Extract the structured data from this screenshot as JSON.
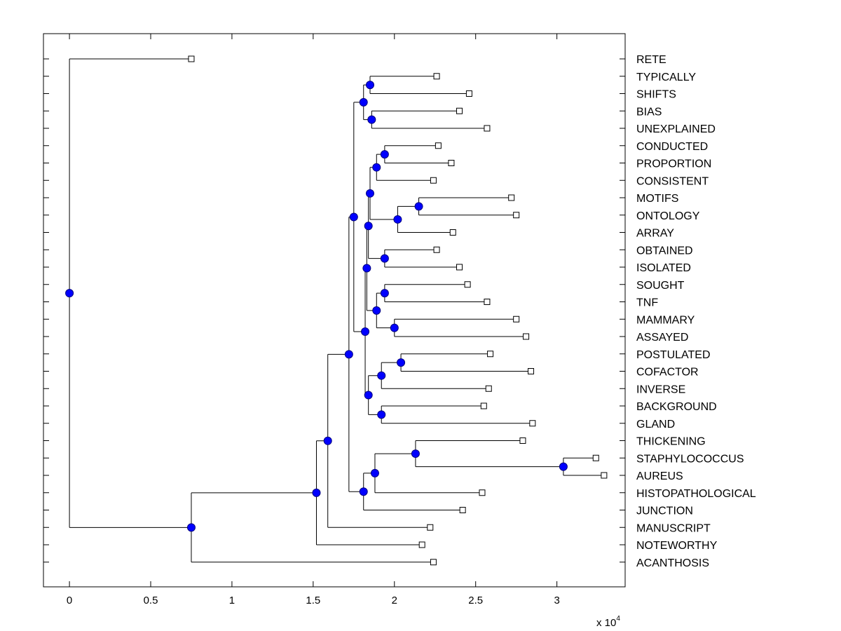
{
  "chart_data": {
    "type": "dendrogram",
    "title": "",
    "xlabel": "",
    "ylabel": "",
    "x_scale_label": "x 10",
    "x_scale_exponent": "4",
    "xlim": [
      -0.16,
      3.42
    ],
    "xticks": [
      0,
      0.5,
      1,
      1.5,
      2,
      2.5,
      3
    ],
    "xtick_labels": [
      "0",
      "0.5",
      "1",
      "1.5",
      "2",
      "2.5",
      "3"
    ],
    "colors": {
      "node": "#0000ff",
      "line": "#000000",
      "background": "#ffffff"
    },
    "leaves": [
      {
        "label": "RETE",
        "value": 0.75
      },
      {
        "label": "TYPICALLY",
        "value": 2.26
      },
      {
        "label": "SHIFTS",
        "value": 2.46
      },
      {
        "label": "BIAS",
        "value": 2.4
      },
      {
        "label": "UNEXPLAINED",
        "value": 2.57
      },
      {
        "label": "CONDUCTED",
        "value": 2.27
      },
      {
        "label": "PROPORTION",
        "value": 2.35
      },
      {
        "label": "CONSISTENT",
        "value": 2.24
      },
      {
        "label": "MOTIFS",
        "value": 2.72
      },
      {
        "label": "ONTOLOGY",
        "value": 2.75
      },
      {
        "label": "ARRAY",
        "value": 2.36
      },
      {
        "label": "OBTAINED",
        "value": 2.26
      },
      {
        "label": "ISOLATED",
        "value": 2.4
      },
      {
        "label": "SOUGHT",
        "value": 2.45
      },
      {
        "label": "TNF",
        "value": 2.57
      },
      {
        "label": "MAMMARY",
        "value": 2.75
      },
      {
        "label": "ASSAYED",
        "value": 2.81
      },
      {
        "label": "POSTULATED",
        "value": 2.59
      },
      {
        "label": "COFACTOR",
        "value": 2.84
      },
      {
        "label": "INVERSE",
        "value": 2.58
      },
      {
        "label": "BACKGROUND",
        "value": 2.55
      },
      {
        "label": "GLAND",
        "value": 2.85
      },
      {
        "label": "THICKENING",
        "value": 2.79
      },
      {
        "label": "STAPHYLOCOCCUS",
        "value": 3.24
      },
      {
        "label": "AUREUS",
        "value": 3.29
      },
      {
        "label": "HISTOPATHOLOGICAL",
        "value": 2.54
      },
      {
        "label": "JUNCTION",
        "value": 2.42
      },
      {
        "label": "MANUSCRIPT",
        "value": 2.22
      },
      {
        "label": "NOTEWORTHY",
        "value": 2.17
      },
      {
        "label": "ACANTHOSIS",
        "value": 2.24
      }
    ],
    "merges": [
      {
        "id": "n1",
        "value": 1.85,
        "children": [
          "TYPICALLY",
          "SHIFTS"
        ]
      },
      {
        "id": "n2",
        "value": 1.86,
        "children": [
          "BIAS",
          "UNEXPLAINED"
        ]
      },
      {
        "id": "n3",
        "value": 1.81,
        "children": [
          "n1",
          "n2"
        ]
      },
      {
        "id": "n4",
        "value": 1.94,
        "children": [
          "CONDUCTED",
          "PROPORTION"
        ]
      },
      {
        "id": "n5",
        "value": 1.89,
        "children": [
          "n4",
          "CONSISTENT"
        ]
      },
      {
        "id": "n6",
        "value": 2.15,
        "children": [
          "MOTIFS",
          "ONTOLOGY"
        ]
      },
      {
        "id": "n7",
        "value": 2.02,
        "children": [
          "n6",
          "ARRAY"
        ]
      },
      {
        "id": "n8",
        "value": 1.85,
        "children": [
          "n5",
          "n7"
        ]
      },
      {
        "id": "n9",
        "value": 1.94,
        "children": [
          "OBTAINED",
          "ISOLATED"
        ]
      },
      {
        "id": "n10",
        "value": 1.84,
        "children": [
          "n8",
          "n9"
        ]
      },
      {
        "id": "n11",
        "value": 1.94,
        "children": [
          "SOUGHT",
          "TNF"
        ]
      },
      {
        "id": "n12",
        "value": 2.0,
        "children": [
          "MAMMARY",
          "ASSAYED"
        ]
      },
      {
        "id": "n13",
        "value": 1.89,
        "children": [
          "n11",
          "n12"
        ]
      },
      {
        "id": "n14",
        "value": 1.83,
        "children": [
          "n10",
          "n13"
        ]
      },
      {
        "id": "n15",
        "value": 2.04,
        "children": [
          "POSTULATED",
          "COFACTOR"
        ]
      },
      {
        "id": "n16",
        "value": 1.92,
        "children": [
          "n15",
          "INVERSE"
        ]
      },
      {
        "id": "n17",
        "value": 1.92,
        "children": [
          "BACKGROUND",
          "GLAND"
        ]
      },
      {
        "id": "n18",
        "value": 1.84,
        "children": [
          "n16",
          "n17"
        ]
      },
      {
        "id": "n19",
        "value": 1.82,
        "children": [
          "n14",
          "n18"
        ]
      },
      {
        "id": "n20",
        "value": 1.75,
        "children": [
          "n3",
          "n19"
        ]
      },
      {
        "id": "n21",
        "value": 3.04,
        "children": [
          "STAPHYLOCOCCUS",
          "AUREUS"
        ]
      },
      {
        "id": "n22",
        "value": 2.13,
        "children": [
          "THICKENING",
          "n21"
        ]
      },
      {
        "id": "n23",
        "value": 1.88,
        "children": [
          "n22",
          "HISTOPATHOLOGICAL"
        ]
      },
      {
        "id": "n24",
        "value": 1.81,
        "children": [
          "n23",
          "JUNCTION"
        ]
      },
      {
        "id": "n25",
        "value": 1.72,
        "children": [
          "n20",
          "n24"
        ]
      },
      {
        "id": "n26",
        "value": 1.59,
        "children": [
          "n25",
          "MANUSCRIPT"
        ]
      },
      {
        "id": "n27",
        "value": 1.52,
        "children": [
          "n26",
          "NOTEWORTHY"
        ]
      },
      {
        "id": "n28",
        "value": 0.75,
        "children": [
          "n27",
          "ACANTHOSIS"
        ]
      },
      {
        "id": "root",
        "value": 0.0,
        "children": [
          "RETE",
          "n28"
        ]
      }
    ]
  }
}
